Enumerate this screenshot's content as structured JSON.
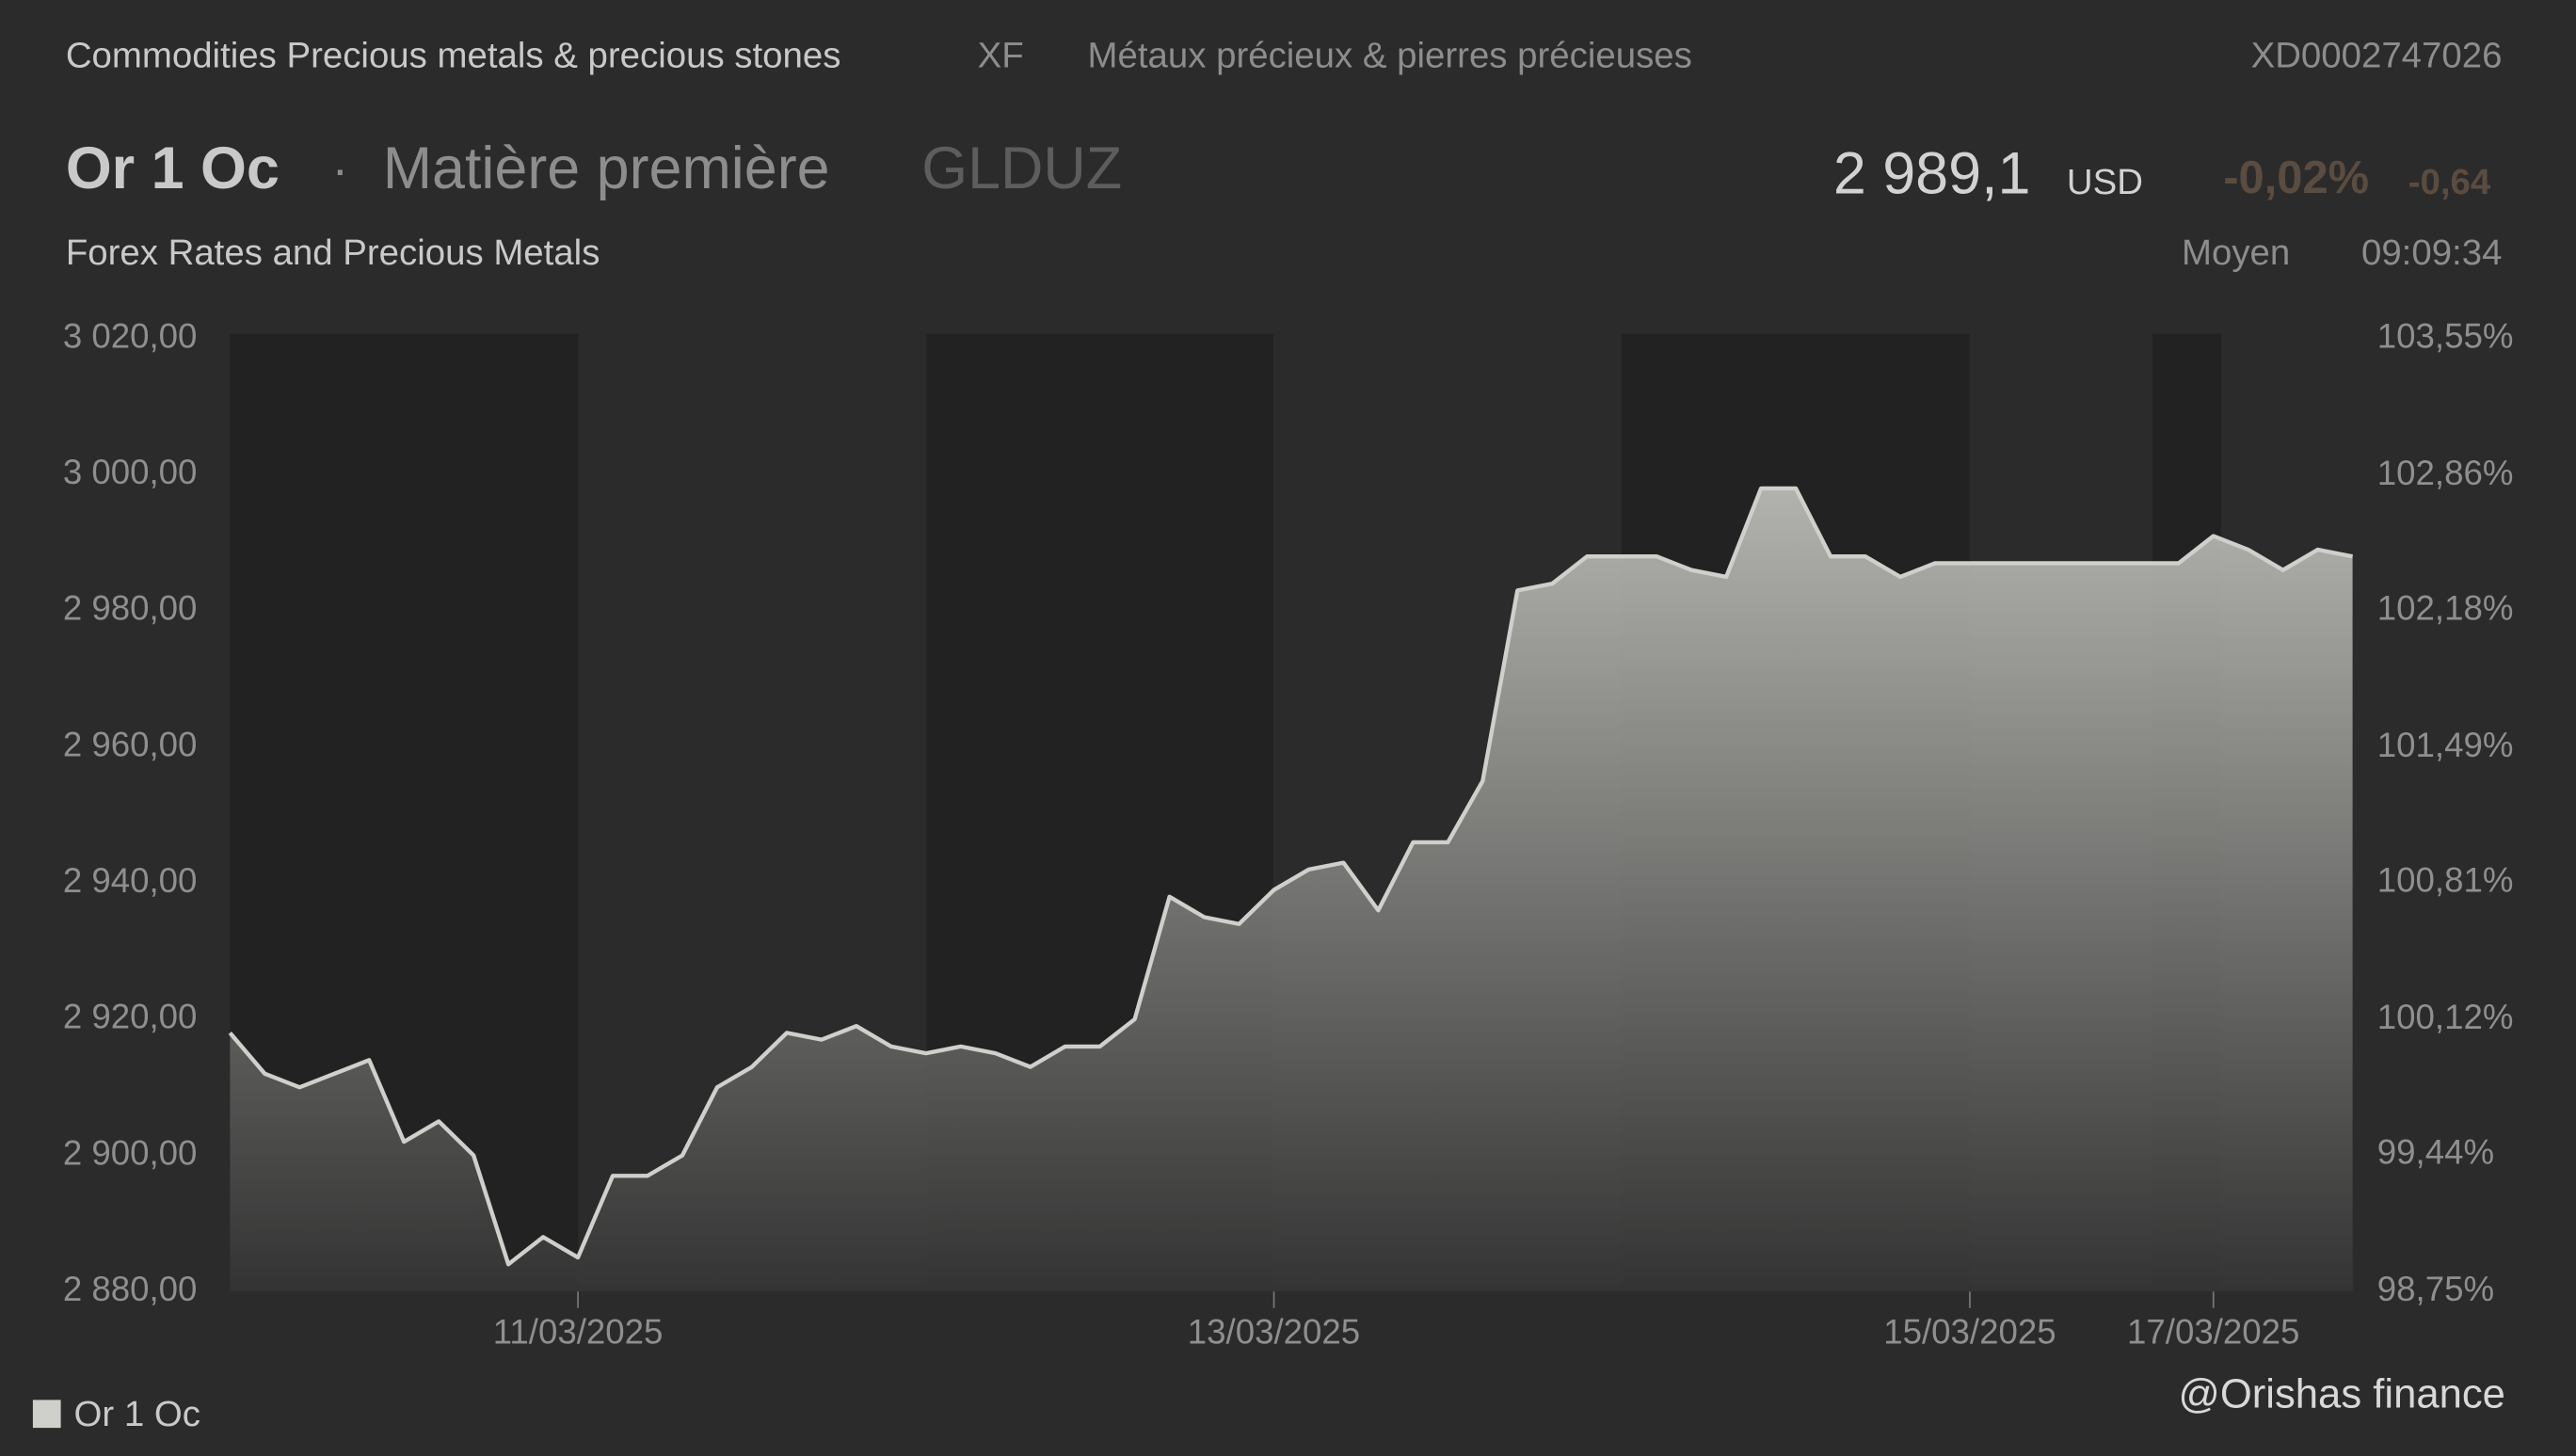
{
  "header": {
    "category": "Commodities Precious metals & precious stones",
    "exchange": "XF",
    "category_fr": "Métaux précieux & pierres précieuses",
    "isin": "XD0002747026",
    "name": "Or 1 Oc",
    "separator": "·",
    "kind": "Matière première",
    "ticker": "GLDUZ",
    "price": "2 989,1",
    "currency": "USD",
    "change_pct": "-0,02%",
    "change": "-0,64",
    "source": "Forex Rates and Precious Metals",
    "quote_type": "Moyen",
    "time": "09:09:34",
    "watermark": "@Orishas finance"
  },
  "chart_data": {
    "type": "line",
    "categories": [
      null,
      null,
      null,
      null,
      null,
      null,
      null,
      null,
      null,
      null,
      "11/03/2025",
      null,
      null,
      null,
      null,
      null,
      null,
      null,
      null,
      null,
      null,
      null,
      null,
      null,
      null,
      null,
      null,
      null,
      null,
      null,
      "13/03/2025",
      null,
      null,
      null,
      null,
      null,
      null,
      null,
      null,
      null,
      null,
      null,
      null,
      null,
      null,
      null,
      null,
      null,
      null,
      null,
      "15/03/2025",
      null,
      null,
      null,
      null,
      null,
      null,
      "17/03/2025",
      null,
      null,
      null,
      null
    ],
    "series": [
      {
        "name": "Or 1 Oc",
        "color": "#cfcfcb",
        "values": [
          2918,
          2912,
          2910,
          2912,
          2914,
          2902,
          2905,
          2900,
          2884,
          2888,
          2885,
          2897,
          2897,
          2900,
          2910,
          2913,
          2918,
          2917,
          2919,
          2916,
          2915,
          2916,
          2915,
          2913,
          2916,
          2916,
          2920,
          2938,
          2935,
          2934,
          2939,
          2942,
          2943,
          2936,
          2946,
          2946,
          2955,
          2983,
          2984,
          2988,
          2988,
          2988,
          2986,
          2985,
          2998,
          2998,
          2988,
          2988,
          2985,
          2987,
          2987,
          2987,
          2987,
          2987,
          2987,
          2987,
          2987,
          2991,
          2989,
          2986,
          2989,
          2988
        ]
      }
    ],
    "ylim": [
      2880,
      3020
    ],
    "yticks": [
      {
        "value": 2880,
        "label": "2 880,00"
      },
      {
        "value": 2900,
        "label": "2 900,00"
      },
      {
        "value": 2920,
        "label": "2 920,00"
      },
      {
        "value": 2940,
        "label": "2 940,00"
      },
      {
        "value": 2960,
        "label": "2 960,00"
      },
      {
        "value": 2980,
        "label": "2 980,00"
      },
      {
        "value": 3000,
        "label": "3 000,00"
      },
      {
        "value": 3020,
        "label": "3 020,00"
      }
    ],
    "y2lim": [
      98.75,
      103.55
    ],
    "y2ticks": [
      {
        "value": 98.75,
        "label": "98,75%"
      },
      {
        "value": 99.44,
        "label": "99,44%"
      },
      {
        "value": 100.12,
        "label": "100,12%"
      },
      {
        "value": 100.81,
        "label": "100,81%"
      },
      {
        "value": 101.49,
        "label": "101,49%"
      },
      {
        "value": 102.18,
        "label": "102,18%"
      },
      {
        "value": 102.86,
        "label": "102,86%"
      },
      {
        "value": 103.55,
        "label": "103,55%"
      }
    ],
    "legend": "bottom-left"
  }
}
